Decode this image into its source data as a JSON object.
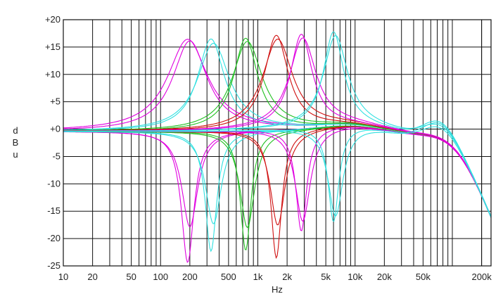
{
  "chart_data": {
    "type": "line",
    "xscale": "log",
    "xlim": [
      10,
      250000
    ],
    "ylim": [
      -25,
      20
    ],
    "grid": true,
    "xlabel": "Hz",
    "ylabel": [
      "d",
      "B",
      "u"
    ],
    "y_ticks": [
      {
        "v": 20,
        "label": "+20"
      },
      {
        "v": 15,
        "label": "+15"
      },
      {
        "v": 10,
        "label": "+10"
      },
      {
        "v": 5,
        "label": "+5"
      },
      {
        "v": 0,
        "label": "+0"
      },
      {
        "v": -5,
        "label": "-5"
      },
      {
        "v": -10,
        "label": "-10"
      },
      {
        "v": -15,
        "label": "-15"
      },
      {
        "v": -20,
        "label": "-20"
      },
      {
        "v": -25,
        "label": "-25"
      }
    ],
    "x_ticks": [
      {
        "v": 10,
        "label": "10"
      },
      {
        "v": 20,
        "label": "20"
      },
      {
        "v": 50,
        "label": "50"
      },
      {
        "v": 100,
        "label": "100"
      },
      {
        "v": 200,
        "label": "200"
      },
      {
        "v": 500,
        "label": "500"
      },
      {
        "v": 1000,
        "label": "1k"
      },
      {
        "v": 2000,
        "label": "2k"
      },
      {
        "v": 5000,
        "label": "5k"
      },
      {
        "v": 10000,
        "label": "10k"
      },
      {
        "v": 20000,
        "label": "20k"
      },
      {
        "v": 50000,
        "label": "50k"
      },
      {
        "v": 200000,
        "label": "200k"
      }
    ],
    "bands": [
      {
        "color": "#e000e0",
        "fc": 190,
        "boost": 16.8,
        "cut": -24.0,
        "boost_q": 1.2,
        "cut_q": 3.8,
        "hf_ripple": 0.3
      },
      {
        "color": "#e000e0",
        "fc": 200,
        "boost": 16.5,
        "cut": -17.5,
        "boost_q": 1.4,
        "cut_q": 3.0,
        "hf_ripple": 0.3
      },
      {
        "color": "#30e0e0",
        "fc": 330,
        "boost": 16.8,
        "cut": -22.0,
        "boost_q": 1.8,
        "cut_q": 4.2,
        "hf_ripple": 0.3
      },
      {
        "color": "#30e0e0",
        "fc": 350,
        "boost": 16.0,
        "cut": -17.0,
        "boost_q": 1.5,
        "cut_q": 3.0,
        "hf_ripple": 0.3
      },
      {
        "color": "#20c020",
        "fc": 750,
        "boost": 16.8,
        "cut": -22.0,
        "boost_q": 2.0,
        "cut_q": 4.5,
        "hf_ripple": 0.3
      },
      {
        "color": "#20c020",
        "fc": 780,
        "boost": 16.2,
        "cut": -17.8,
        "boost_q": 1.6,
        "cut_q": 3.2,
        "hf_ripple": 0.3
      },
      {
        "color": "#d01010",
        "fc": 1550,
        "boost": 17.2,
        "cut": -23.5,
        "boost_q": 2.0,
        "cut_q": 4.5,
        "hf_ripple": 0.3
      },
      {
        "color": "#d01010",
        "fc": 1600,
        "boost": 16.5,
        "cut": -17.5,
        "boost_q": 1.6,
        "cut_q": 3.2,
        "hf_ripple": 0.3
      },
      {
        "color": "#e000e0",
        "fc": 2800,
        "boost": 17.2,
        "cut": -18.8,
        "boost_q": 2.2,
        "cut_q": 4.5,
        "hf_ripple": 0.3
      },
      {
        "color": "#e000e0",
        "fc": 2900,
        "boost": 16.5,
        "cut": -17.0,
        "boost_q": 1.8,
        "cut_q": 3.2,
        "hf_ripple": 0.3
      },
      {
        "color": "#30e0e0",
        "fc": 6000,
        "boost": 17.2,
        "cut": -17.5,
        "boost_q": 2.4,
        "cut_q": 4.5,
        "hf_ripple": 3.2
      },
      {
        "color": "#30e0e0",
        "fc": 6300,
        "boost": 16.5,
        "cut": -16.5,
        "boost_q": 2.0,
        "cut_q": 3.2,
        "hf_ripple": 2.5
      }
    ]
  }
}
